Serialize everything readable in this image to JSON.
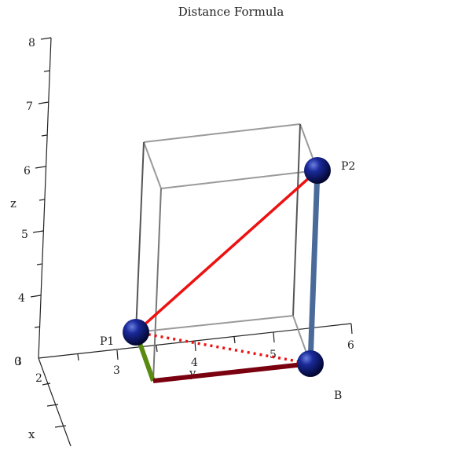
{
  "chart_data": {
    "type": "diagram-3d",
    "title": "Distance Formula",
    "axes": {
      "x": {
        "label": "x",
        "ticks": [
          "2"
        ]
      },
      "y": {
        "label": "y",
        "ticks": [
          "3",
          "4",
          "5",
          "6"
        ]
      },
      "z": {
        "label": "z",
        "ticks": [
          "3",
          "4",
          "5",
          "6",
          "7",
          "8"
        ]
      }
    },
    "origin_label": "0",
    "points": [
      {
        "name": "P1",
        "label": "P1"
      },
      {
        "name": "P2",
        "label": "P2"
      },
      {
        "name": "B",
        "label": "B"
      }
    ],
    "colors": {
      "box_edge": "#9a9a9a",
      "box_edge_dark": "#555555",
      "p1_to_p2": "#ee1111",
      "p1_to_b": "#ee1111",
      "p2_to_b": "#4a6a9a",
      "x_leg": "#5a8a10",
      "y_leg": "#7a0010",
      "sphere": "#0a1a7a"
    }
  }
}
